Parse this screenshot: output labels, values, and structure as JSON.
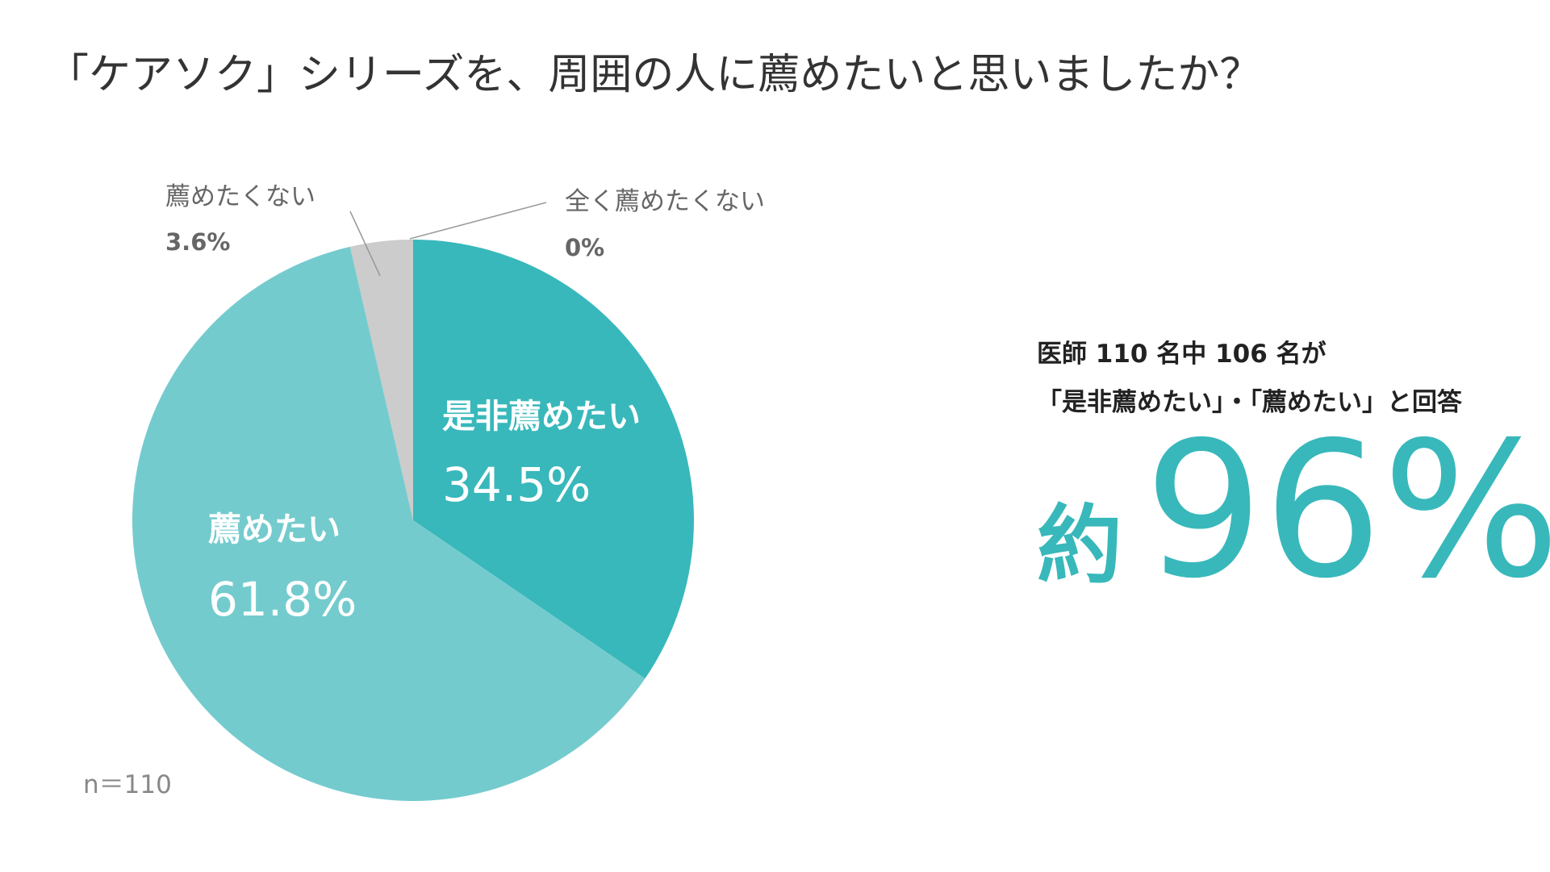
{
  "title": "「ケアソク」シリーズを、周囲の人に薦めたいと思いましたか？",
  "sample_size": "n＝110",
  "colors": {
    "strongly_recommend": "#38b8bb",
    "recommend": "#74cbce",
    "not_recommend": "#cccccc",
    "never_recommend": "#b5b5b5",
    "accent": "#38b8bb"
  },
  "chart_data": {
    "type": "pie",
    "title": "「ケアソク」シリーズを、周囲の人に薦めたいと思いましたか？",
    "slices": [
      {
        "label": "是非薦めたい",
        "value": 34.5,
        "display": "34.5%"
      },
      {
        "label": "薦めたい",
        "value": 61.8,
        "display": "61.8%"
      },
      {
        "label": "薦めたくない",
        "value": 3.6,
        "display": "3.6%"
      },
      {
        "label": "全く薦めたくない",
        "value": 0,
        "display": "0%"
      }
    ]
  },
  "summary": {
    "line1": "医師 110 名中 106 名が",
    "line2": "「是非薦めたい」・「薦めたい」と回答",
    "prefix": "約",
    "big_value": "96%"
  }
}
